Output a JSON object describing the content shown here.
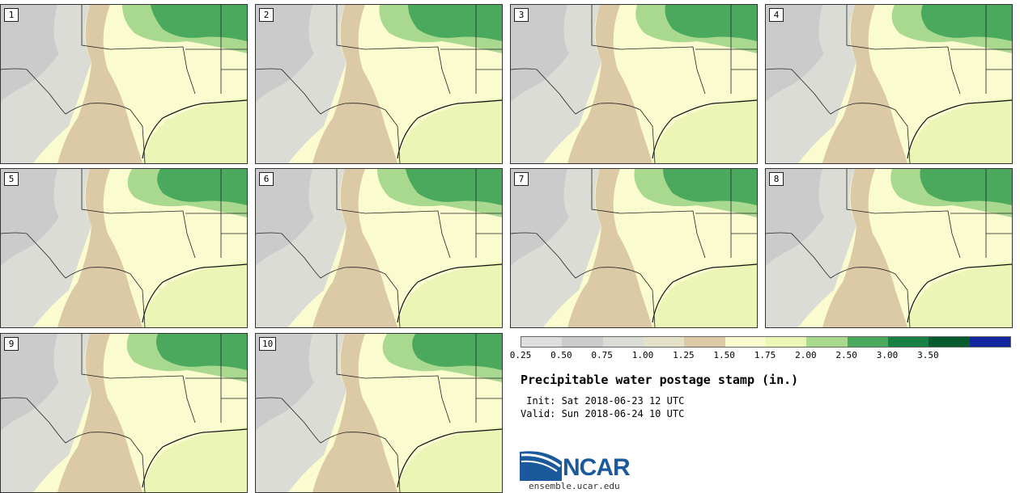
{
  "stamps": [
    {
      "label": "1"
    },
    {
      "label": "2"
    },
    {
      "label": "3"
    },
    {
      "label": "4"
    },
    {
      "label": "5"
    },
    {
      "label": "6"
    },
    {
      "label": "7"
    },
    {
      "label": "8"
    },
    {
      "label": "9"
    },
    {
      "label": "10"
    }
  ],
  "colorbar": {
    "colors": [
      "#dedede",
      "#cbcbcb",
      "#dcdcd6",
      "#e4e1c8",
      "#dcc9a5",
      "#fbfbd0",
      "#eaf5b6",
      "#a9d98f",
      "#4ba95e",
      "#178043",
      "#07592e",
      "#1226a0"
    ],
    "ticks": [
      "0.25",
      "0.50",
      "0.75",
      "1.00",
      "1.25",
      "1.50",
      "1.75",
      "2.00",
      "2.50",
      "3.00",
      "3.50"
    ]
  },
  "title": "Precipitable water postage stamp (in.)",
  "init": " Init: Sat 2018-06-23 12 UTC",
  "valid": "Valid: Sun 2018-06-24 10 UTC",
  "logo": {
    "text": "NCAR",
    "site": "ensemble.ucar.edu"
  }
}
